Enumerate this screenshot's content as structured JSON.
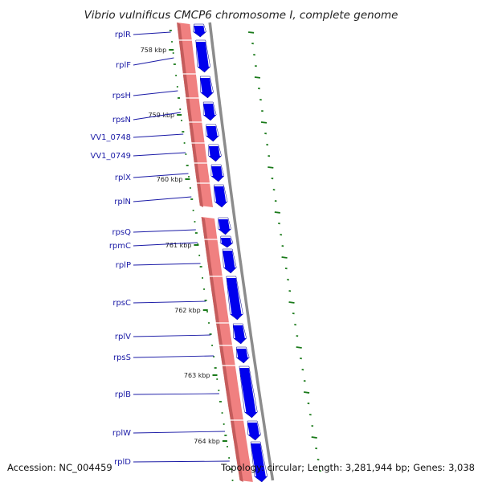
{
  "title": "Vibrio vulnificus CMCP6 chromosome I, complete genome",
  "footer": {
    "accession": "Accession: NC_004459",
    "topology": "Topology: circular; Length: 3,281,944 bp; Genes: 3,038"
  },
  "colors": {
    "gene_forward": "#0000ee",
    "gene_reverse": "#f08080",
    "backbone": "#8c8c8c",
    "gc_marks": "#1a7a1a",
    "label": "#1a1aa6"
  },
  "ticks": [
    "758 kbp",
    "759 kbp",
    "760 kbp",
    "761 kbp",
    "762 kbp",
    "763 kbp",
    "764 kbp"
  ],
  "genes": [
    "rplR",
    "rplF",
    "rpsH",
    "rpsN",
    "VV1_0748",
    "VV1_0749",
    "rplX",
    "rplN",
    "rpsQ",
    "rpmC",
    "rplP",
    "rpsC",
    "rplV",
    "rpsS",
    "rplB",
    "rplW",
    "rplD"
  ]
}
